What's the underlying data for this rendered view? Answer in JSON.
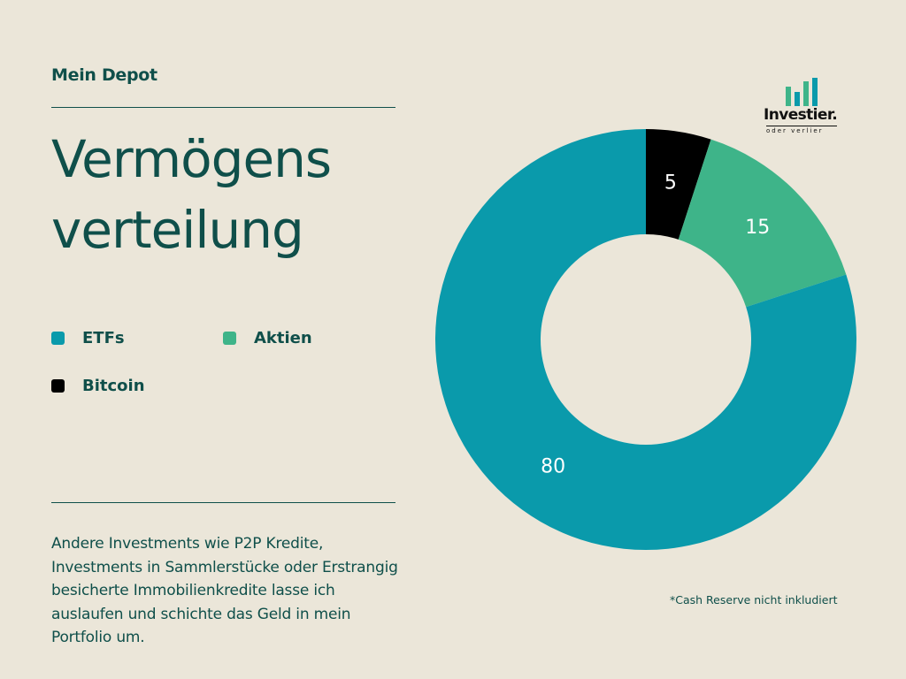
{
  "header": {
    "label": "Mein Depot",
    "title_line1": "Vermögens",
    "title_line2": "verteilung"
  },
  "logo": {
    "wordmark": "Investier.",
    "tagline": "oder verlier"
  },
  "colors": {
    "background": "#ebe6d9",
    "text": "#0f4f4a",
    "etfs": "#0a9aab",
    "aktien": "#3eb489",
    "bitcoin": "#000000"
  },
  "chart_data": {
    "type": "pie",
    "variant": "donut",
    "categories": [
      "Bitcoin",
      "Aktien",
      "ETFs"
    ],
    "values": [
      5,
      15,
      80
    ],
    "data_labels": [
      "5",
      "15",
      "80"
    ],
    "colors": [
      "#000000",
      "#3eb489",
      "#0a9aab"
    ],
    "start_angle": "top",
    "direction": "clockwise",
    "legend": {
      "placement": "left",
      "entries": [
        {
          "label": "ETFs",
          "color": "#0a9aab"
        },
        {
          "label": "Aktien",
          "color": "#3eb489"
        },
        {
          "label": "Bitcoin",
          "color": "#000000"
        }
      ]
    }
  },
  "note": "Andere Investments wie P2P Kredite, Investments in Sammlerstücke oder Erstrangig besicherte Immobilienkredite lasse ich auslaufen und schichte das Geld in mein Portfolio um.",
  "footnote": "*Cash Reserve nicht inkludiert"
}
